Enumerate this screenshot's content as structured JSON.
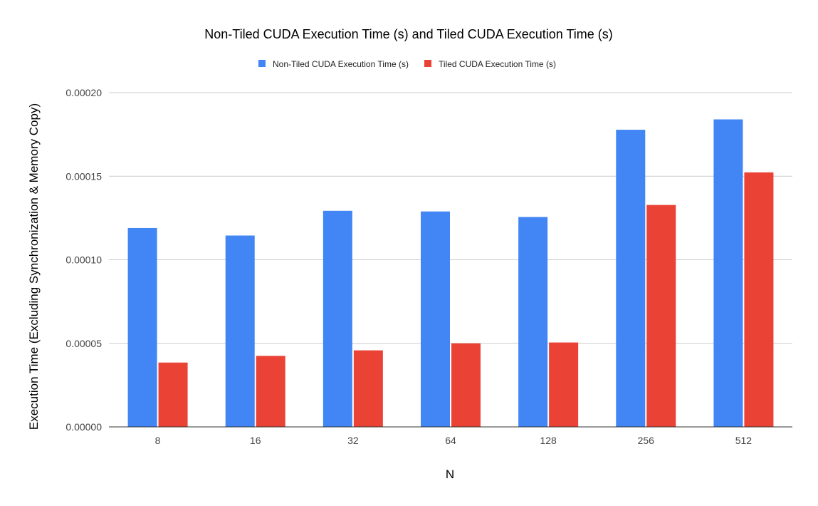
{
  "chart_data": {
    "type": "bar",
    "title": "Non-Tiled CUDA Execution Time (s) and Tiled CUDA Execution Time (s)",
    "xlabel": "N",
    "ylabel": "Execution Time (Excluding Synchronization & Memory Copy)",
    "categories": [
      "8",
      "16",
      "32",
      "64",
      "128",
      "256",
      "512"
    ],
    "series": [
      {
        "name": "Non-Tiled CUDA Execution Time (s)",
        "color": "#4285f4",
        "values": [
          0.000119,
          0.0001145,
          0.0001293,
          0.0001289,
          0.0001256,
          0.0001778,
          0.000184
        ]
      },
      {
        "name": "Tiled CUDA Execution Time (s)",
        "color": "#ea4335",
        "values": [
          3.85e-05,
          4.25e-05,
          4.58e-05,
          5e-05,
          5.05e-05,
          0.0001328,
          0.0001523
        ]
      }
    ],
    "ylim": [
      0,
      0.0002
    ],
    "yticks": [
      0,
      5e-05,
      0.0001,
      0.00015,
      0.0002
    ],
    "ytick_labels": [
      "0.00000",
      "0.00005",
      "0.00010",
      "0.00015",
      "0.00020"
    ],
    "grid": true,
    "legend_position": "top-center"
  }
}
